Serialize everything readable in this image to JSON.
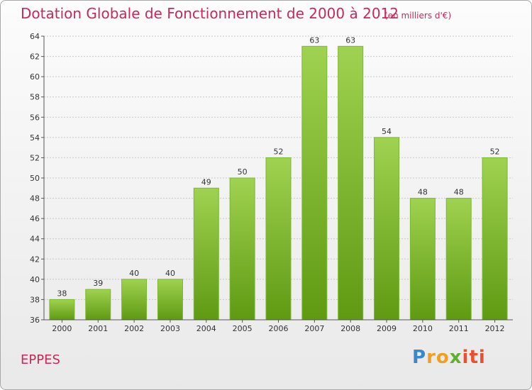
{
  "header": {
    "title": "Dotation Globale de Fonctionnement de 2000 à 2012",
    "unit": "(en milliers d'€)"
  },
  "commune": "EPPES",
  "logo": {
    "parts": [
      "P",
      "ro",
      "x",
      "iti"
    ]
  },
  "colors": {
    "title": "#c8285a",
    "bar_top": "#9fd250",
    "bar_bottom": "#5f9a12",
    "axis": "#555555",
    "grid": "#c8c8c8"
  },
  "chart_data": {
    "type": "bar",
    "title": "Dotation Globale de Fonctionnement de 2000 à 2012",
    "subtitle": "(en milliers d'€)",
    "categories": [
      "2000",
      "2001",
      "2002",
      "2003",
      "2004",
      "2005",
      "2006",
      "2007",
      "2008",
      "2009",
      "2010",
      "2011",
      "2012"
    ],
    "values": [
      38,
      39,
      40,
      40,
      49,
      50,
      52,
      63,
      63,
      54,
      48,
      48,
      52
    ],
    "data_labels": [
      "38",
      "39",
      "40",
      "40",
      "49",
      "50",
      "52",
      "63",
      "63",
      "54",
      "48",
      "48",
      "52"
    ],
    "ylim": [
      36,
      64
    ],
    "yticks": [
      36,
      38,
      40,
      42,
      44,
      46,
      48,
      50,
      52,
      54,
      56,
      58,
      60,
      62,
      64
    ],
    "ytick_labels": [
      "36",
      "38",
      "40",
      "42",
      "44",
      "46",
      "48",
      "50",
      "52",
      "54",
      "56",
      "58",
      "60",
      "62",
      "64"
    ],
    "grid": true,
    "legend": "none"
  }
}
